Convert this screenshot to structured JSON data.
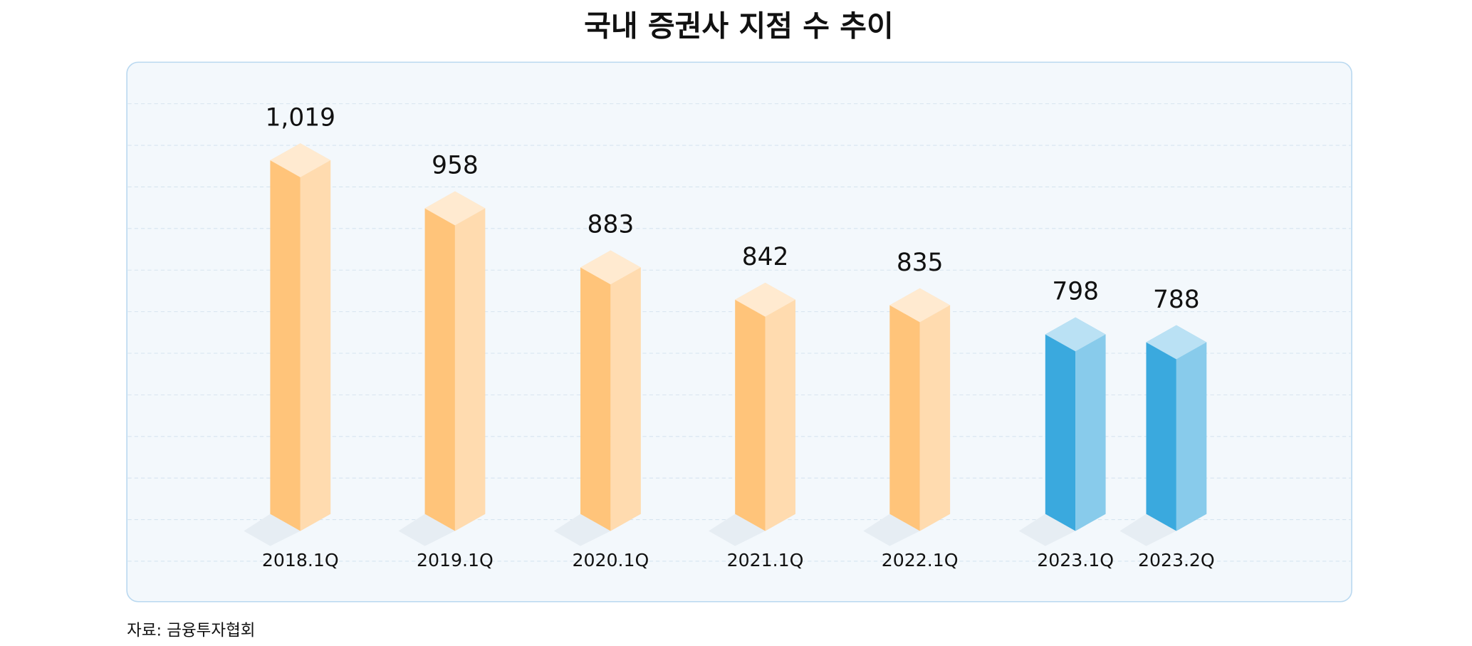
{
  "chart_data": {
    "type": "bar",
    "title": "국내 증권사 지점 수 추이",
    "categories": [
      "2018.1Q",
      "2019.1Q",
      "2020.1Q",
      "2021.1Q",
      "2022.1Q",
      "2023.1Q",
      "2023.2Q"
    ],
    "values": [
      1019,
      958,
      883,
      842,
      835,
      798,
      788
    ],
    "value_labels": [
      "1,019",
      "958",
      "883",
      "842",
      "835",
      "798",
      "788"
    ],
    "colors": [
      "#ffc47a",
      "#ffc47a",
      "#ffc47a",
      "#ffc47a",
      "#ffc47a",
      "#3aa9de",
      "#3aa9de"
    ],
    "ylim": [
      570,
      1165
    ],
    "source": "자료: 금융투자협회"
  }
}
